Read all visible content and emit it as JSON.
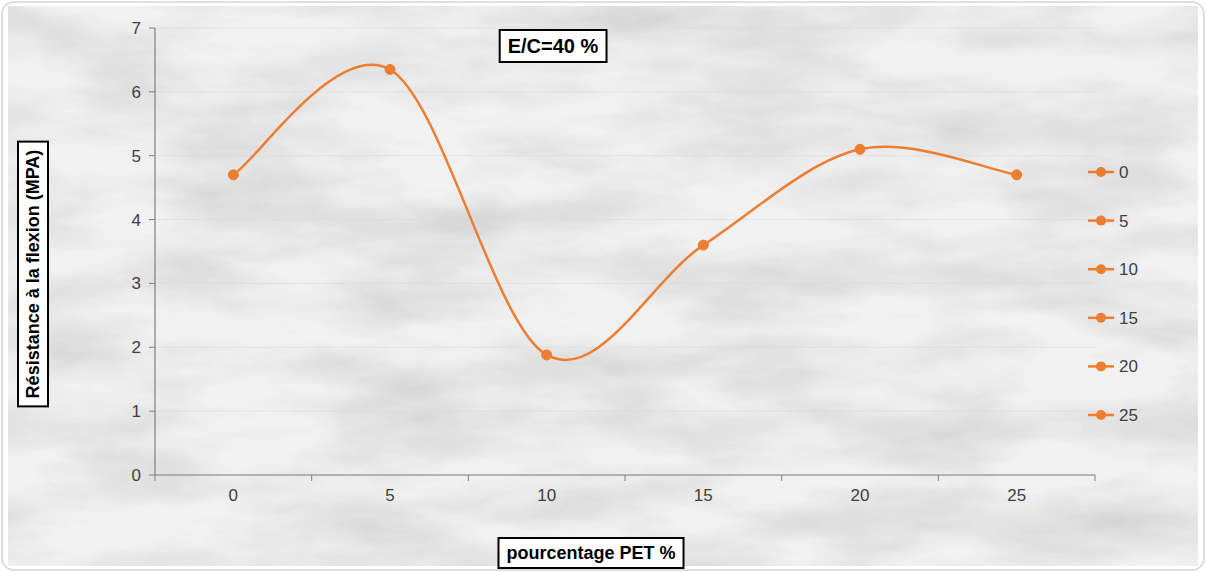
{
  "chart_data": {
    "type": "line",
    "title": "E/C=40 %",
    "x_label": "pourcentage PET %",
    "y_label": "Résistance à la flexion (MPA)",
    "categories": [
      "0",
      "5",
      "10",
      "15",
      "20",
      "25"
    ],
    "values": [
      4.7,
      6.35,
      1.88,
      3.6,
      5.1,
      4.7
    ],
    "color": "#ed7d31",
    "marker": "circle",
    "line_style": "smooth",
    "ylim": [
      0,
      7
    ],
    "yticks": [
      0,
      1,
      2,
      3,
      4,
      5,
      6,
      7
    ],
    "grid": true,
    "legend": "right"
  }
}
